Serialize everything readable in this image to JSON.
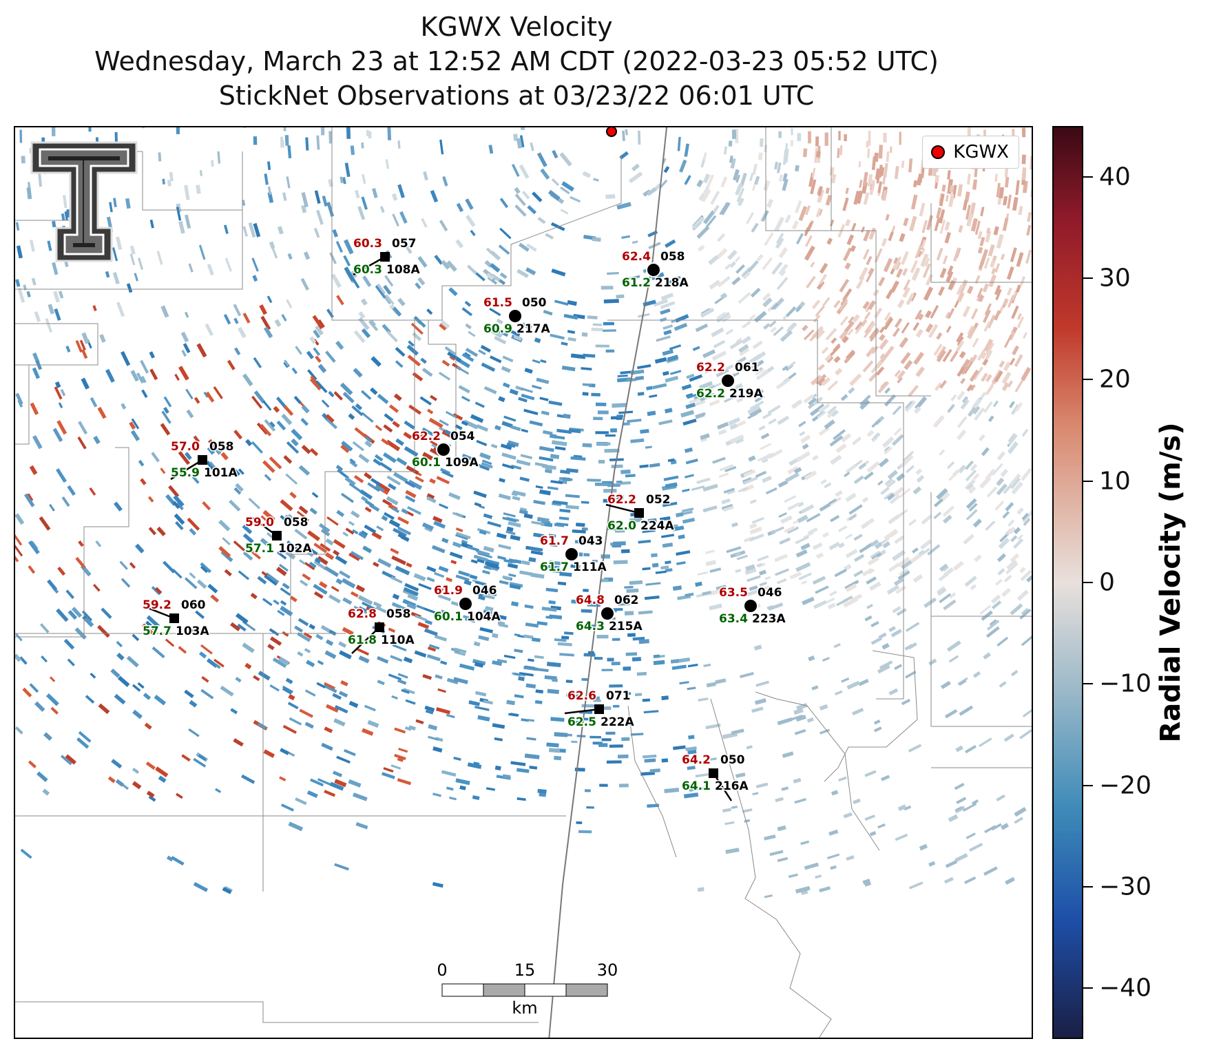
{
  "title": {
    "line1": "KGWX Velocity",
    "line2": "Wednesday, March 23 at 12:52 AM CDT (2022-03-23 05:52 UTC)",
    "line3": "StickNet Observations at 03/23/22 06:01 UTC"
  },
  "legend": {
    "label": "KGWX"
  },
  "colorbar": {
    "label": "Radial Velocity (m/s)",
    "range": [
      -45,
      45
    ],
    "ticks": [
      "40",
      "30",
      "20",
      "10",
      "0",
      "−10",
      "−20",
      "−30",
      "−40"
    ],
    "tick_values": [
      40,
      30,
      20,
      10,
      0,
      -10,
      -20,
      -30,
      -40
    ]
  },
  "scalebar": {
    "labels": [
      "0",
      "15",
      "30"
    ],
    "unit": "km"
  },
  "stations": [
    {
      "id": "108A",
      "temp": "60.3",
      "dew": "60.3",
      "dir": "057",
      "shape": "square"
    },
    {
      "id": "218A",
      "temp": "62.4",
      "dew": "61.2",
      "dir": "058",
      "shape": "circle"
    },
    {
      "id": "217A",
      "temp": "61.5",
      "dew": "60.9",
      "dir": "050",
      "shape": "circle"
    },
    {
      "id": "219A",
      "temp": "62.2",
      "dew": "62.2",
      "dir": "061",
      "shape": "circle"
    },
    {
      "id": "109A",
      "temp": "62.2",
      "dew": "60.1",
      "dir": "054",
      "shape": "circle"
    },
    {
      "id": "101A",
      "temp": "57.0",
      "dew": "55.9",
      "dir": "058",
      "shape": "square"
    },
    {
      "id": "224A",
      "temp": "62.2",
      "dew": "62.0",
      "dir": "052",
      "shape": "square"
    },
    {
      "id": "102A",
      "temp": "59.0",
      "dew": "57.1",
      "dir": "058",
      "shape": "square"
    },
    {
      "id": "111A",
      "temp": "61.7",
      "dew": "61.7",
      "dir": "043",
      "shape": "circle"
    },
    {
      "id": "104A",
      "temp": "61.9",
      "dew": "60.1",
      "dir": "046",
      "shape": "circle"
    },
    {
      "id": "215A",
      "temp": "64.8",
      "dew": "64.3",
      "dir": "062",
      "shape": "circle"
    },
    {
      "id": "223A",
      "temp": "63.5",
      "dew": "63.4",
      "dir": "046",
      "shape": "circle"
    },
    {
      "id": "103A",
      "temp": "59.2",
      "dew": "57.7",
      "dir": "060",
      "shape": "square"
    },
    {
      "id": "110A",
      "temp": "62.8",
      "dew": "61.8",
      "dir": "058",
      "shape": "square"
    },
    {
      "id": "222A",
      "temp": "62.6",
      "dew": "62.5",
      "dir": "071",
      "shape": "square"
    },
    {
      "id": "216A",
      "temp": "64.2",
      "dew": "64.1",
      "dir": "050",
      "shape": "square"
    }
  ],
  "colors": {
    "temp": "#b00000",
    "dew": "#006400",
    "text": "#000000"
  }
}
